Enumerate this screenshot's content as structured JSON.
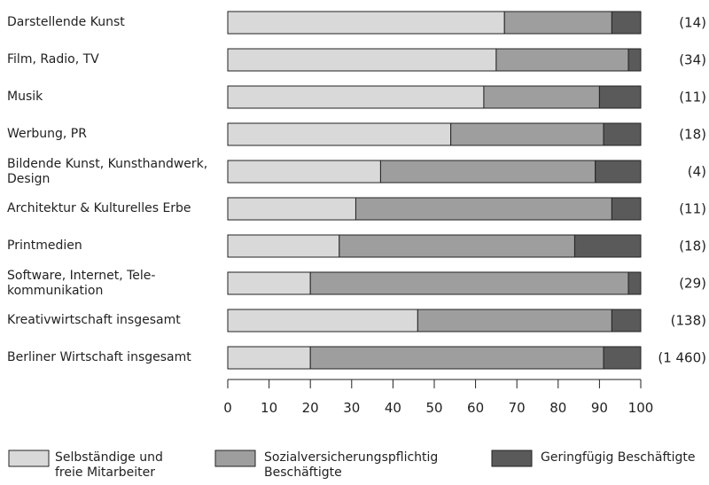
{
  "chart_data": {
    "type": "bar",
    "orientation": "horizontal",
    "stacked": true,
    "categories": [
      "Darstellende Kunst",
      "Film, Radio, TV",
      "Musik",
      "Werbung, PR",
      "Bildende Kunst, Kunsthandwerk,\nDesign",
      "Architektur & Kulturelles Erbe",
      "Printmedien",
      "Software, Internet, Tele-\nkommunikation",
      "Kreativwirtschaft insgesamt",
      "Berliner Wirtschaft insgesamt"
    ],
    "counts": [
      "(14)",
      "(34)",
      "(11)",
      "(18)",
      "(4)",
      "(11)",
      "(18)",
      "(29)",
      "(138)",
      "(1 460)"
    ],
    "series": [
      {
        "name": "Selbständige und\nfreie Mitarbeiter",
        "color": "#d9d9d9",
        "values": [
          67,
          65,
          62,
          54,
          37,
          31,
          27,
          20,
          46,
          20
        ]
      },
      {
        "name": "Sozialversicherungspflichtig\nBeschäftigte",
        "color": "#9e9e9e",
        "values": [
          26,
          32,
          28,
          37,
          52,
          62,
          57,
          77,
          47,
          71
        ]
      },
      {
        "name": "Geringfügig Beschäftigte",
        "color": "#5a5a5a",
        "values": [
          7,
          3,
          10,
          9,
          11,
          7,
          16,
          3,
          7,
          9
        ]
      }
    ],
    "xlim": [
      0,
      100
    ],
    "xticks": [
      0,
      10,
      20,
      30,
      40,
      50,
      60,
      70,
      80,
      90,
      100
    ]
  }
}
